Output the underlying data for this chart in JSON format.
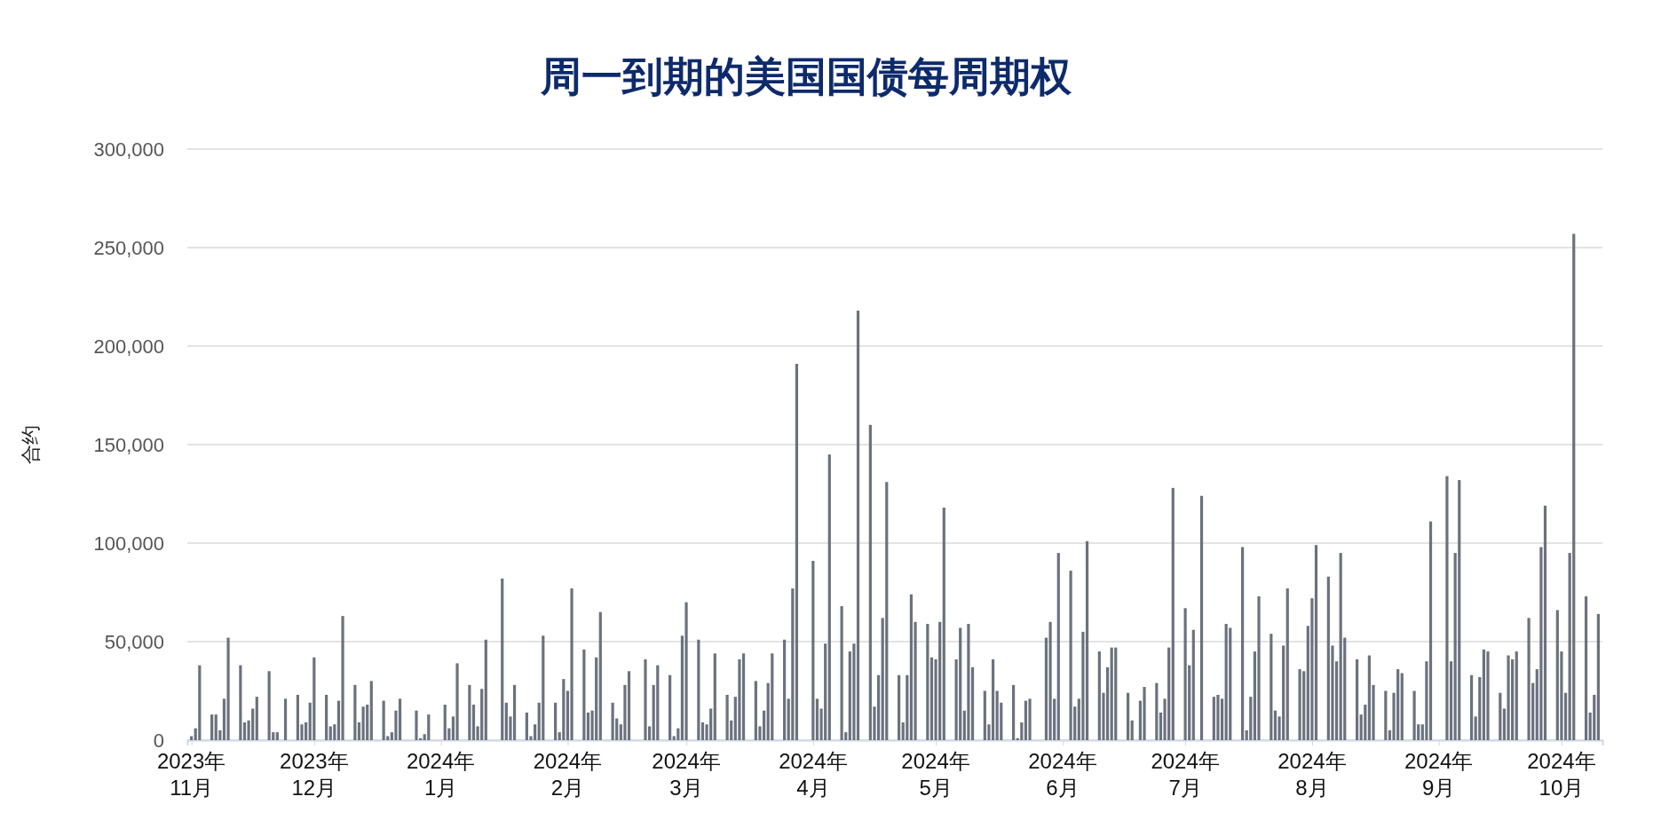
{
  "chart_data": {
    "type": "bar",
    "title": "周一到期的美国国债每周期权",
    "ylabel": "合约",
    "color": "#6b727d",
    "grid": "y",
    "xlim": [
      "2023-10-31",
      "2024-10-11"
    ],
    "xticks": [
      {
        "value": "2023-11-01",
        "label": "2023年11月"
      },
      {
        "value": "2023-12-01",
        "label": "2023年12月"
      },
      {
        "value": "2024-01-01",
        "label": "2024年1月"
      },
      {
        "value": "2024-02-01",
        "label": "2024年2月"
      },
      {
        "value": "2024-03-01",
        "label": "2024年3月"
      },
      {
        "value": "2024-04-01",
        "label": "2024年4月"
      },
      {
        "value": "2024-05-01",
        "label": "2024年5月"
      },
      {
        "value": "2024-06-01",
        "label": "2024年6月"
      },
      {
        "value": "2024-07-01",
        "label": "2024年7月"
      },
      {
        "value": "2024-08-01",
        "label": "2024年8月"
      },
      {
        "value": "2024-09-01",
        "label": "2024年9月"
      },
      {
        "value": "2024-10-01",
        "label": "2024年10月"
      }
    ],
    "ylim": [
      0,
      300000
    ],
    "yticks": [
      {
        "value": 0,
        "label": "0"
      },
      {
        "value": 50000,
        "label": "50,000"
      },
      {
        "value": 100000,
        "label": "100,000"
      },
      {
        "value": 150000,
        "label": "150,000"
      },
      {
        "value": 200000,
        "label": "200,000"
      },
      {
        "value": 250000,
        "label": "250,000"
      },
      {
        "value": 300000,
        "label": "300,000"
      }
    ],
    "x": [
      "2023-11-01",
      "2023-11-02",
      "2023-11-03",
      "2023-11-06",
      "2023-11-07",
      "2023-11-08",
      "2023-11-09",
      "2023-11-10",
      "2023-11-13",
      "2023-11-14",
      "2023-11-15",
      "2023-11-16",
      "2023-11-17",
      "2023-11-20",
      "2023-11-21",
      "2023-11-22",
      "2023-11-24",
      "2023-11-27",
      "2023-11-28",
      "2023-11-29",
      "2023-11-30",
      "2023-12-01",
      "2023-12-04",
      "2023-12-05",
      "2023-12-06",
      "2023-12-07",
      "2023-12-08",
      "2023-12-11",
      "2023-12-12",
      "2023-12-13",
      "2023-12-14",
      "2023-12-15",
      "2023-12-18",
      "2023-12-19",
      "2023-12-20",
      "2023-12-21",
      "2023-12-22",
      "2023-12-26",
      "2023-12-27",
      "2023-12-28",
      "2023-12-29",
      "2024-01-02",
      "2024-01-03",
      "2024-01-04",
      "2024-01-05",
      "2024-01-08",
      "2024-01-09",
      "2024-01-10",
      "2024-01-11",
      "2024-01-12",
      "2024-01-16",
      "2024-01-17",
      "2024-01-18",
      "2024-01-19",
      "2024-01-22",
      "2024-01-23",
      "2024-01-24",
      "2024-01-25",
      "2024-01-26",
      "2024-01-29",
      "2024-01-30",
      "2024-01-31",
      "2024-02-01",
      "2024-02-02",
      "2024-02-05",
      "2024-02-06",
      "2024-02-07",
      "2024-02-08",
      "2024-02-09",
      "2024-02-12",
      "2024-02-13",
      "2024-02-14",
      "2024-02-15",
      "2024-02-16",
      "2024-02-20",
      "2024-02-21",
      "2024-02-22",
      "2024-02-23",
      "2024-02-26",
      "2024-02-27",
      "2024-02-28",
      "2024-02-29",
      "2024-03-01",
      "2024-03-04",
      "2024-03-05",
      "2024-03-06",
      "2024-03-07",
      "2024-03-08",
      "2024-03-11",
      "2024-03-12",
      "2024-03-13",
      "2024-03-14",
      "2024-03-15",
      "2024-03-18",
      "2024-03-19",
      "2024-03-20",
      "2024-03-21",
      "2024-03-22",
      "2024-03-25",
      "2024-03-26",
      "2024-03-27",
      "2024-03-28",
      "2024-04-01",
      "2024-04-02",
      "2024-04-03",
      "2024-04-04",
      "2024-04-05",
      "2024-04-08",
      "2024-04-09",
      "2024-04-10",
      "2024-04-11",
      "2024-04-12",
      "2024-04-15",
      "2024-04-16",
      "2024-04-17",
      "2024-04-18",
      "2024-04-19",
      "2024-04-22",
      "2024-04-23",
      "2024-04-24",
      "2024-04-25",
      "2024-04-26",
      "2024-04-29",
      "2024-04-30",
      "2024-05-01",
      "2024-05-02",
      "2024-05-03",
      "2024-05-06",
      "2024-05-07",
      "2024-05-08",
      "2024-05-09",
      "2024-05-10",
      "2024-05-13",
      "2024-05-14",
      "2024-05-15",
      "2024-05-16",
      "2024-05-17",
      "2024-05-20",
      "2024-05-21",
      "2024-05-22",
      "2024-05-23",
      "2024-05-24",
      "2024-05-28",
      "2024-05-29",
      "2024-05-30",
      "2024-05-31",
      "2024-06-03",
      "2024-06-04",
      "2024-06-05",
      "2024-06-06",
      "2024-06-07",
      "2024-06-10",
      "2024-06-11",
      "2024-06-12",
      "2024-06-13",
      "2024-06-14",
      "2024-06-17",
      "2024-06-18",
      "2024-06-20",
      "2024-06-21",
      "2024-06-24",
      "2024-06-25",
      "2024-06-26",
      "2024-06-27",
      "2024-06-28",
      "2024-07-01",
      "2024-07-02",
      "2024-07-03",
      "2024-07-05",
      "2024-07-08",
      "2024-07-09",
      "2024-07-10",
      "2024-07-11",
      "2024-07-12",
      "2024-07-15",
      "2024-07-16",
      "2024-07-17",
      "2024-07-18",
      "2024-07-19",
      "2024-07-22",
      "2024-07-23",
      "2024-07-24",
      "2024-07-25",
      "2024-07-26",
      "2024-07-29",
      "2024-07-30",
      "2024-07-31",
      "2024-08-01",
      "2024-08-02",
      "2024-08-05",
      "2024-08-06",
      "2024-08-07",
      "2024-08-08",
      "2024-08-09",
      "2024-08-12",
      "2024-08-13",
      "2024-08-14",
      "2024-08-15",
      "2024-08-16",
      "2024-08-19",
      "2024-08-20",
      "2024-08-21",
      "2024-08-22",
      "2024-08-23",
      "2024-08-26",
      "2024-08-27",
      "2024-08-28",
      "2024-08-29",
      "2024-08-30",
      "2024-09-03",
      "2024-09-04",
      "2024-09-05",
      "2024-09-06",
      "2024-09-09",
      "2024-09-10",
      "2024-09-11",
      "2024-09-12",
      "2024-09-13",
      "2024-09-16",
      "2024-09-17",
      "2024-09-18",
      "2024-09-19",
      "2024-09-20",
      "2024-09-23",
      "2024-09-24",
      "2024-09-25",
      "2024-09-26",
      "2024-09-27",
      "2024-09-30",
      "2024-10-01",
      "2024-10-02",
      "2024-10-03",
      "2024-10-04",
      "2024-10-07",
      "2024-10-08",
      "2024-10-09",
      "2024-10-10"
    ],
    "values": [
      2000,
      6000,
      38000,
      13000,
      13000,
      5000,
      21000,
      52000,
      38000,
      9000,
      10000,
      16000,
      22000,
      35000,
      4000,
      4000,
      21000,
      23000,
      8000,
      9000,
      19000,
      42000,
      23000,
      7000,
      8000,
      20000,
      63000,
      28000,
      9000,
      17000,
      18000,
      30000,
      20000,
      2000,
      4000,
      15000,
      21000,
      15000,
      1000,
      3000,
      13000,
      18000,
      6000,
      12000,
      39000,
      28000,
      18000,
      7000,
      26000,
      51000,
      82000,
      19000,
      12000,
      28000,
      14000,
      2000,
      8000,
      19000,
      53000,
      19000,
      4000,
      31000,
      25000,
      77000,
      46000,
      14000,
      15000,
      42000,
      65000,
      19000,
      11000,
      8000,
      28000,
      35000,
      41000,
      7000,
      28000,
      38000,
      33000,
      2000,
      6000,
      53000,
      70000,
      51000,
      9000,
      8000,
      16000,
      44000,
      23000,
      10000,
      22000,
      41000,
      44000,
      30000,
      7000,
      15000,
      29000,
      44000,
      51000,
      21000,
      77000,
      191000,
      91000,
      21000,
      16000,
      49000,
      145000,
      68000,
      4000,
      45000,
      49000,
      218000,
      160000,
      17000,
      33000,
      62000,
      131000,
      33000,
      9000,
      33000,
      74000,
      60000,
      59000,
      42000,
      41000,
      60000,
      118000,
      41000,
      57000,
      15000,
      59000,
      37000,
      25000,
      8000,
      41000,
      25000,
      19000,
      28000,
      1000,
      9000,
      20000,
      21000,
      52000,
      60000,
      21000,
      95000,
      86000,
      17000,
      21000,
      55000,
      101000,
      45000,
      24000,
      37000,
      47000,
      47000,
      24000,
      10000,
      20000,
      27000,
      29000,
      14000,
      21000,
      47000,
      128000,
      67000,
      38000,
      56000,
      124000,
      22000,
      23000,
      21000,
      59000,
      57000,
      98000,
      5000,
      22000,
      45000,
      73000,
      54000,
      15000,
      12000,
      48000,
      77000,
      36000,
      35000,
      58000,
      72000,
      99000,
      83000,
      48000,
      40000,
      95000,
      52000,
      41000,
      13000,
      18000,
      43000,
      28000,
      25000,
      5000,
      24000,
      36000,
      34000,
      25000,
      8000,
      8000,
      40000,
      111000,
      134000,
      40000,
      95000,
      132000,
      33000,
      12000,
      32000,
      46000,
      45000,
      24000,
      16000,
      43000,
      41000,
      45000,
      62000,
      29000,
      36000,
      98000,
      119000,
      66000,
      45000,
      24000,
      95000,
      257000,
      73000,
      14000,
      23000,
      64000
    ]
  }
}
